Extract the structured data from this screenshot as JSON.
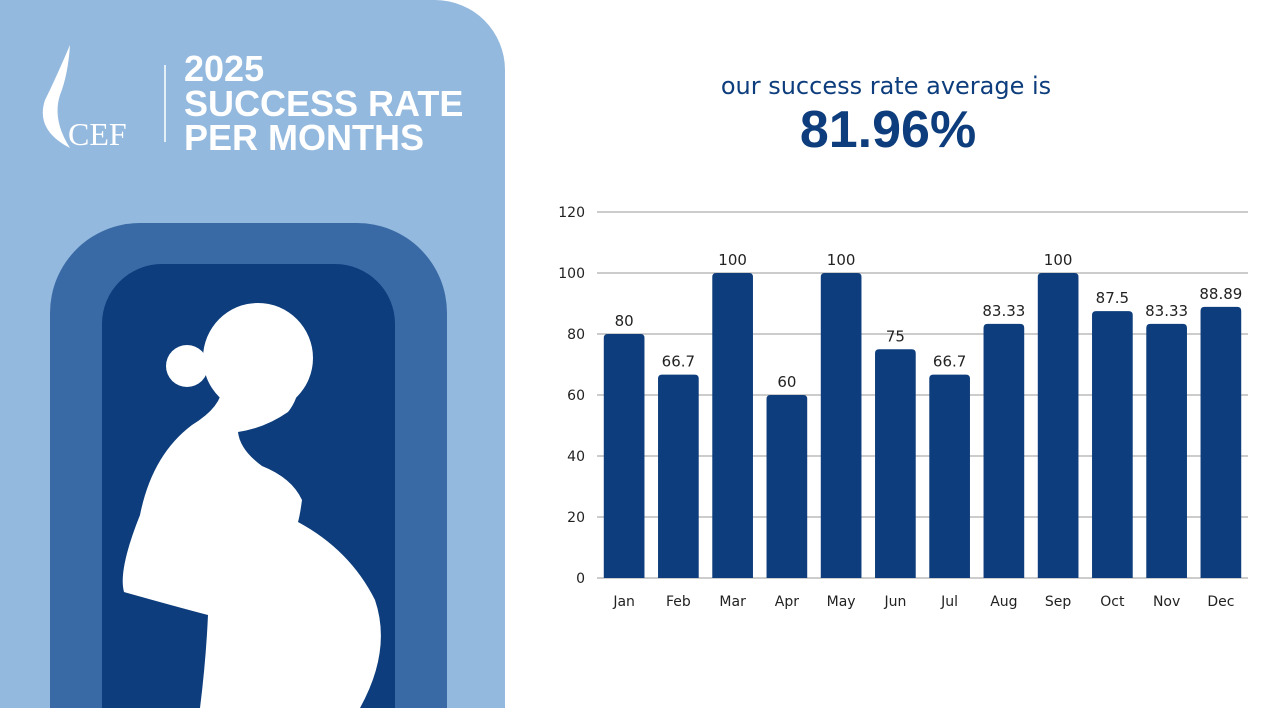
{
  "header": {
    "logo": "CEF",
    "title_lines": [
      "2025",
      "SUCCESS RATE",
      "PER MONTHS"
    ]
  },
  "summary": {
    "label": "our success rate average is",
    "value": "81.96%"
  },
  "chart_data": {
    "type": "bar",
    "categories": [
      "Jan",
      "Feb",
      "Mar",
      "Apr",
      "May",
      "Jun",
      "Jul",
      "Aug",
      "Sep",
      "Oct",
      "Nov",
      "Dec"
    ],
    "values": [
      80,
      66.7,
      100,
      60,
      100,
      75,
      66.7,
      83.33,
      100,
      87.5,
      83.33,
      88.89
    ],
    "color": "#0d3d7c",
    "ylim": [
      0,
      120
    ],
    "yticks": [
      0,
      20,
      40,
      60,
      80,
      100,
      120
    ],
    "grid": true
  }
}
